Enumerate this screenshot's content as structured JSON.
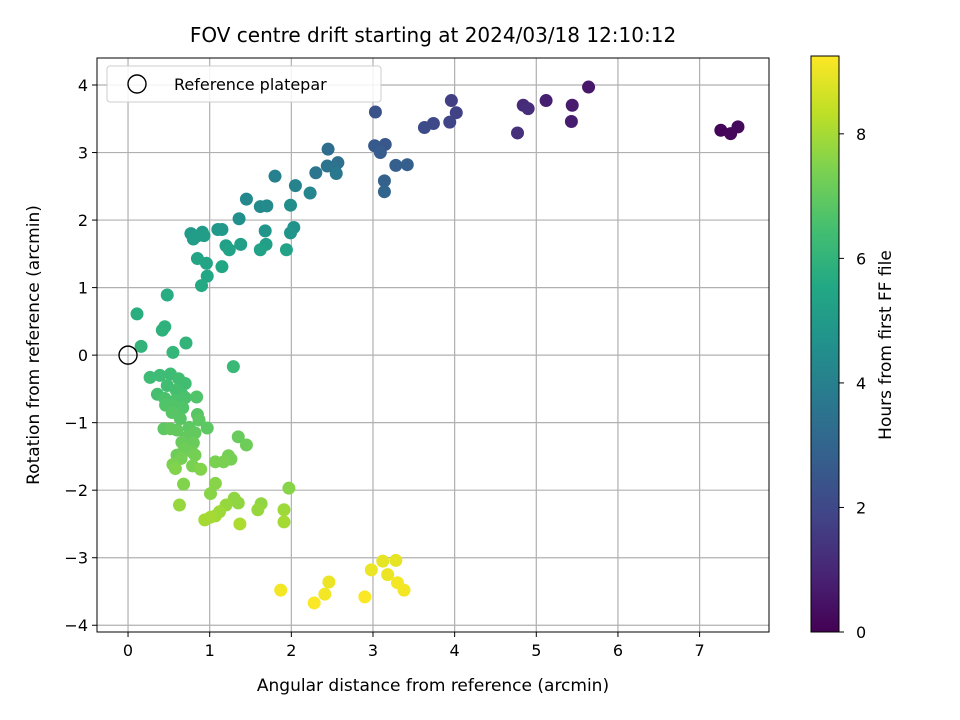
{
  "chart_data": {
    "type": "scatter",
    "title": "FOV centre drift starting at 2024/03/18 12:10:12",
    "xlabel": "Angular distance from reference (arcmin)",
    "ylabel": "Rotation from reference (arcmin)",
    "xlim": [
      -0.38,
      7.85
    ],
    "ylim": [
      -4.1,
      4.4
    ],
    "xticks": [
      0,
      1,
      2,
      3,
      4,
      5,
      6,
      7
    ],
    "yticks": [
      -4,
      -3,
      -2,
      -1,
      0,
      1,
      2,
      3,
      4
    ],
    "xtick_labels": [
      "0",
      "1",
      "2",
      "3",
      "4",
      "5",
      "6",
      "7"
    ],
    "ytick_labels": [
      "−4",
      "−3",
      "−2",
      "−1",
      "0",
      "1",
      "2",
      "3",
      "4"
    ],
    "grid": true,
    "legend": {
      "placement": "upper-left",
      "entries": [
        "Reference platepar"
      ]
    },
    "reference_point": {
      "x": 0,
      "y": 0,
      "label": "Reference platepar"
    },
    "colorbar": {
      "label": "Hours from first FF file",
      "colormap": "viridis",
      "range": [
        0,
        9.25
      ],
      "ticks": [
        0,
        2,
        4,
        6,
        8
      ],
      "tick_labels": [
        "0",
        "2",
        "4",
        "6",
        "8"
      ]
    },
    "points": [
      {
        "x": 7.26,
        "y": 3.33,
        "c": 0.1
      },
      {
        "x": 7.38,
        "y": 3.28,
        "c": 0.15
      },
      {
        "x": 7.47,
        "y": 3.38,
        "c": 0.2
      },
      {
        "x": 5.64,
        "y": 3.97,
        "c": 0.6
      },
      {
        "x": 5.12,
        "y": 3.77,
        "c": 0.8
      },
      {
        "x": 5.44,
        "y": 3.7,
        "c": 0.7
      },
      {
        "x": 5.43,
        "y": 3.46,
        "c": 0.75
      },
      {
        "x": 4.84,
        "y": 3.7,
        "c": 1.1
      },
      {
        "x": 4.9,
        "y": 3.65,
        "c": 1.2
      },
      {
        "x": 4.77,
        "y": 3.29,
        "c": 1.3
      },
      {
        "x": 3.96,
        "y": 3.77,
        "c": 1.7
      },
      {
        "x": 4.02,
        "y": 3.59,
        "c": 1.8
      },
      {
        "x": 3.94,
        "y": 3.45,
        "c": 1.9
      },
      {
        "x": 3.74,
        "y": 3.43,
        "c": 2.0
      },
      {
        "x": 3.63,
        "y": 3.37,
        "c": 2.1
      },
      {
        "x": 3.03,
        "y": 3.6,
        "c": 2.3
      },
      {
        "x": 3.15,
        "y": 3.12,
        "c": 2.5
      },
      {
        "x": 3.02,
        "y": 3.1,
        "c": 2.6
      },
      {
        "x": 3.09,
        "y": 3.0,
        "c": 2.7
      },
      {
        "x": 3.28,
        "y": 2.81,
        "c": 2.8
      },
      {
        "x": 3.42,
        "y": 2.82,
        "c": 2.8
      },
      {
        "x": 3.14,
        "y": 2.58,
        "c": 2.9
      },
      {
        "x": 3.14,
        "y": 2.42,
        "c": 3.0
      },
      {
        "x": 2.45,
        "y": 3.05,
        "c": 3.3
      },
      {
        "x": 2.57,
        "y": 2.85,
        "c": 3.4
      },
      {
        "x": 2.44,
        "y": 2.8,
        "c": 3.5
      },
      {
        "x": 2.53,
        "y": 2.77,
        "c": 3.5
      },
      {
        "x": 2.3,
        "y": 2.7,
        "c": 3.6
      },
      {
        "x": 2.55,
        "y": 2.69,
        "c": 3.7
      },
      {
        "x": 1.8,
        "y": 2.65,
        "c": 4.0
      },
      {
        "x": 2.05,
        "y": 2.51,
        "c": 4.1
      },
      {
        "x": 2.23,
        "y": 2.4,
        "c": 4.2
      },
      {
        "x": 1.45,
        "y": 2.31,
        "c": 4.3
      },
      {
        "x": 1.62,
        "y": 2.2,
        "c": 4.4
      },
      {
        "x": 1.7,
        "y": 2.21,
        "c": 4.4
      },
      {
        "x": 1.99,
        "y": 2.22,
        "c": 4.5
      },
      {
        "x": 1.36,
        "y": 2.02,
        "c": 4.6
      },
      {
        "x": 2.03,
        "y": 1.89,
        "c": 4.7
      },
      {
        "x": 1.99,
        "y": 1.81,
        "c": 4.8
      },
      {
        "x": 1.68,
        "y": 1.84,
        "c": 4.8
      },
      {
        "x": 1.1,
        "y": 1.86,
        "c": 4.9
      },
      {
        "x": 1.15,
        "y": 1.86,
        "c": 4.9
      },
      {
        "x": 0.91,
        "y": 1.82,
        "c": 5.0
      },
      {
        "x": 0.77,
        "y": 1.8,
        "c": 5.0
      },
      {
        "x": 0.84,
        "y": 1.76,
        "c": 5.1
      },
      {
        "x": 0.93,
        "y": 1.77,
        "c": 5.1
      },
      {
        "x": 0.8,
        "y": 1.72,
        "c": 5.1
      },
      {
        "x": 1.38,
        "y": 1.64,
        "c": 5.2
      },
      {
        "x": 1.69,
        "y": 1.64,
        "c": 5.2
      },
      {
        "x": 1.2,
        "y": 1.62,
        "c": 5.2
      },
      {
        "x": 1.24,
        "y": 1.56,
        "c": 5.3
      },
      {
        "x": 1.62,
        "y": 1.56,
        "c": 5.3
      },
      {
        "x": 1.94,
        "y": 1.56,
        "c": 5.3
      },
      {
        "x": 0.85,
        "y": 1.43,
        "c": 5.4
      },
      {
        "x": 0.96,
        "y": 1.36,
        "c": 5.4
      },
      {
        "x": 1.15,
        "y": 1.31,
        "c": 5.5
      },
      {
        "x": 0.97,
        "y": 1.17,
        "c": 5.5
      },
      {
        "x": 0.9,
        "y": 1.03,
        "c": 5.6
      },
      {
        "x": 0.48,
        "y": 0.89,
        "c": 5.7
      },
      {
        "x": 0.11,
        "y": 0.61,
        "c": 5.8
      },
      {
        "x": 0.45,
        "y": 0.42,
        "c": 5.9
      },
      {
        "x": 0.42,
        "y": 0.37,
        "c": 5.9
      },
      {
        "x": 0.71,
        "y": 0.18,
        "c": 6.0
      },
      {
        "x": 0.16,
        "y": 0.13,
        "c": 6.0
      },
      {
        "x": 0.55,
        "y": 0.04,
        "c": 6.1
      },
      {
        "x": 1.29,
        "y": -0.17,
        "c": 6.2
      },
      {
        "x": 0.27,
        "y": -0.33,
        "c": 6.3
      },
      {
        "x": 0.39,
        "y": -0.3,
        "c": 6.3
      },
      {
        "x": 0.52,
        "y": -0.28,
        "c": 6.3
      },
      {
        "x": 0.62,
        "y": -0.35,
        "c": 6.4
      },
      {
        "x": 0.7,
        "y": -0.42,
        "c": 6.4
      },
      {
        "x": 0.48,
        "y": -0.45,
        "c": 6.4
      },
      {
        "x": 0.59,
        "y": -0.52,
        "c": 6.5
      },
      {
        "x": 0.36,
        "y": -0.58,
        "c": 6.5
      },
      {
        "x": 0.66,
        "y": -0.58,
        "c": 6.5
      },
      {
        "x": 0.45,
        "y": -0.64,
        "c": 6.6
      },
      {
        "x": 0.58,
        "y": -0.67,
        "c": 6.6
      },
      {
        "x": 0.7,
        "y": -0.63,
        "c": 6.6
      },
      {
        "x": 0.84,
        "y": -0.62,
        "c": 6.7
      },
      {
        "x": 0.56,
        "y": -0.75,
        "c": 6.7
      },
      {
        "x": 0.67,
        "y": -0.78,
        "c": 6.7
      },
      {
        "x": 0.46,
        "y": -0.74,
        "c": 6.7
      },
      {
        "x": 0.54,
        "y": -0.85,
        "c": 6.8
      },
      {
        "x": 0.85,
        "y": -0.88,
        "c": 6.8
      },
      {
        "x": 0.64,
        "y": -0.94,
        "c": 6.8
      },
      {
        "x": 0.87,
        "y": -0.96,
        "c": 6.9
      },
      {
        "x": 0.75,
        "y": -1.07,
        "c": 6.9
      },
      {
        "x": 0.97,
        "y": -1.08,
        "c": 6.9
      },
      {
        "x": 0.44,
        "y": -1.09,
        "c": 6.9
      },
      {
        "x": 0.52,
        "y": -1.09,
        "c": 7.0
      },
      {
        "x": 0.6,
        "y": -1.11,
        "c": 7.0
      },
      {
        "x": 0.82,
        "y": -1.15,
        "c": 7.0
      },
      {
        "x": 0.71,
        "y": -1.22,
        "c": 7.0
      },
      {
        "x": 0.66,
        "y": -1.29,
        "c": 7.1
      },
      {
        "x": 0.8,
        "y": -1.3,
        "c": 7.1
      },
      {
        "x": 1.35,
        "y": -1.21,
        "c": 7.1
      },
      {
        "x": 1.45,
        "y": -1.33,
        "c": 7.2
      },
      {
        "x": 0.69,
        "y": -1.39,
        "c": 7.2
      },
      {
        "x": 0.78,
        "y": -1.43,
        "c": 7.2
      },
      {
        "x": 0.6,
        "y": -1.48,
        "c": 7.2
      },
      {
        "x": 0.65,
        "y": -1.53,
        "c": 7.3
      },
      {
        "x": 0.82,
        "y": -1.48,
        "c": 7.3
      },
      {
        "x": 1.23,
        "y": -1.49,
        "c": 7.3
      },
      {
        "x": 1.26,
        "y": -1.54,
        "c": 7.3
      },
      {
        "x": 1.07,
        "y": -1.58,
        "c": 7.4
      },
      {
        "x": 1.17,
        "y": -1.58,
        "c": 7.4
      },
      {
        "x": 0.55,
        "y": -1.62,
        "c": 7.4
      },
      {
        "x": 0.79,
        "y": -1.64,
        "c": 7.4
      },
      {
        "x": 0.58,
        "y": -1.68,
        "c": 7.5
      },
      {
        "x": 0.89,
        "y": -1.69,
        "c": 7.5
      },
      {
        "x": 0.68,
        "y": -1.91,
        "c": 7.5
      },
      {
        "x": 1.07,
        "y": -1.9,
        "c": 7.6
      },
      {
        "x": 1.97,
        "y": -1.97,
        "c": 7.6
      },
      {
        "x": 1.01,
        "y": -2.05,
        "c": 7.6
      },
      {
        "x": 1.3,
        "y": -2.12,
        "c": 7.7
      },
      {
        "x": 1.35,
        "y": -2.19,
        "c": 7.7
      },
      {
        "x": 1.63,
        "y": -2.2,
        "c": 7.7
      },
      {
        "x": 1.2,
        "y": -2.22,
        "c": 7.8
      },
      {
        "x": 0.63,
        "y": -2.22,
        "c": 7.8
      },
      {
        "x": 1.59,
        "y": -2.29,
        "c": 7.8
      },
      {
        "x": 1.91,
        "y": -2.29,
        "c": 7.9
      },
      {
        "x": 1.12,
        "y": -2.32,
        "c": 7.9
      },
      {
        "x": 1.07,
        "y": -2.38,
        "c": 7.9
      },
      {
        "x": 1.01,
        "y": -2.4,
        "c": 8.0
      },
      {
        "x": 0.94,
        "y": -2.44,
        "c": 8.0
      },
      {
        "x": 1.91,
        "y": -2.47,
        "c": 8.0
      },
      {
        "x": 1.37,
        "y": -2.5,
        "c": 8.1
      },
      {
        "x": 3.28,
        "y": -3.04,
        "c": 8.9
      },
      {
        "x": 3.12,
        "y": -3.05,
        "c": 8.9
      },
      {
        "x": 2.98,
        "y": -3.18,
        "c": 9.0
      },
      {
        "x": 3.18,
        "y": -3.25,
        "c": 9.0
      },
      {
        "x": 2.46,
        "y": -3.36,
        "c": 9.0
      },
      {
        "x": 3.3,
        "y": -3.37,
        "c": 9.1
      },
      {
        "x": 1.87,
        "y": -3.48,
        "c": 9.1
      },
      {
        "x": 3.38,
        "y": -3.48,
        "c": 9.1
      },
      {
        "x": 2.41,
        "y": -3.54,
        "c": 9.1
      },
      {
        "x": 2.9,
        "y": -3.58,
        "c": 9.2
      },
      {
        "x": 2.28,
        "y": -3.67,
        "c": 9.2
      }
    ]
  }
}
